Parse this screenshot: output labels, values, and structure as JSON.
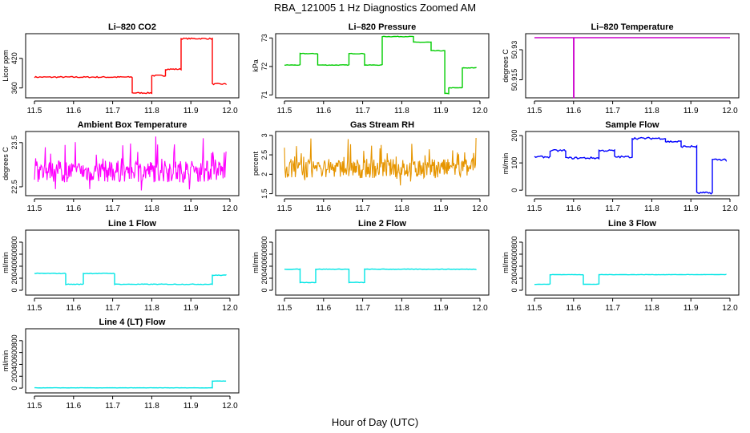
{
  "figure": {
    "title": "RBA_121005  1 Hz Diagnostics Zoomed AM",
    "xlabel": "Hour of Day (UTC)"
  },
  "chart_data": [
    {
      "type": "line",
      "title": "Li–820 CO2",
      "ylabel": "Licor ppm",
      "color": "#ff0000",
      "style": "step",
      "xlim": [
        11.5,
        12.0
      ],
      "ylim": [
        340,
        470
      ],
      "xticks": [
        "11.5",
        "11.6",
        "11.7",
        "11.8",
        "11.9",
        "12.0"
      ],
      "yticks": [
        360,
        420
      ],
      "x": [
        11.5,
        11.75,
        11.75,
        11.8,
        11.8,
        11.835,
        11.835,
        11.875,
        11.875,
        11.955,
        11.955,
        11.99
      ],
      "y": [
        382,
        382,
        350,
        350,
        385,
        385,
        398,
        398,
        460,
        460,
        368,
        368
      ],
      "noise": 2.5
    },
    {
      "type": "line",
      "title": "Li–820 Pressure",
      "ylabel": "kPa",
      "color": "#00cc00",
      "style": "step",
      "xlim": [
        11.5,
        12.0
      ],
      "ylim": [
        70.9,
        73.15
      ],
      "xticks": [
        "11.5",
        "11.6",
        "11.7",
        "11.8",
        "11.9",
        "12.0"
      ],
      "yticks": [
        71.0,
        72.0,
        73.0
      ],
      "x": [
        11.5,
        11.54,
        11.54,
        11.585,
        11.585,
        11.665,
        11.665,
        11.705,
        11.705,
        11.75,
        11.75,
        11.83,
        11.83,
        11.875,
        11.875,
        11.91,
        11.91,
        11.92,
        11.92,
        11.955,
        11.955,
        11.99
      ],
      "y": [
        72.05,
        72.05,
        72.45,
        72.45,
        72.05,
        72.05,
        72.45,
        72.45,
        72.05,
        72.05,
        73.05,
        73.05,
        72.85,
        72.85,
        72.55,
        72.55,
        71.05,
        71.05,
        71.25,
        71.25,
        71.95,
        71.95
      ],
      "noise": 0.02
    },
    {
      "type": "line",
      "title": "Li–820 Temperature",
      "ylabel": "degrees C",
      "color": "#cc00cc",
      "style": "step",
      "xlim": [
        11.5,
        12.0
      ],
      "ylim": [
        50.906,
        50.938
      ],
      "xticks": [
        "11.5",
        "11.6",
        "11.7",
        "11.8",
        "11.9",
        "12.0"
      ],
      "yticks": [
        50.915,
        50.93
      ],
      "x": [
        11.5,
        11.6,
        11.6,
        11.601,
        11.601,
        12.0
      ],
      "y": [
        50.936,
        50.936,
        50.906,
        50.906,
        50.936,
        50.936
      ],
      "noise": 0
    },
    {
      "type": "line",
      "title": "Ambient Box Temperature",
      "ylabel": "degrees C",
      "color": "#ff00ff",
      "style": "noise",
      "xlim": [
        11.5,
        12.0
      ],
      "ylim": [
        22.3,
        23.75
      ],
      "xticks": [
        "11.5",
        "11.6",
        "11.7",
        "11.8",
        "11.9",
        "12.0"
      ],
      "yticks": [
        22.5,
        23.5
      ],
      "x": [
        11.5,
        11.99
      ],
      "y": [
        22.85,
        22.85
      ],
      "noise": 0.55
    },
    {
      "type": "line",
      "title": "Gas Stream RH",
      "ylabel": "percent",
      "color": "#e69500",
      "style": "noise",
      "xlim": [
        11.5,
        12.0
      ],
      "ylim": [
        1.45,
        3.1
      ],
      "xticks": [
        "11.5",
        "11.6",
        "11.7",
        "11.8",
        "11.9",
        "12.0"
      ],
      "yticks": [
        1.5,
        2.0,
        2.5,
        3.0
      ],
      "x": [
        11.5,
        11.99
      ],
      "y": [
        2.15,
        2.15
      ],
      "noise": 0.55
    },
    {
      "type": "line",
      "title": "Sample Flow",
      "ylabel": "ml/min",
      "color": "#0000ff",
      "style": "step",
      "xlim": [
        11.5,
        12.0
      ],
      "ylim": [
        -20,
        215
      ],
      "xticks": [
        "11.5",
        "11.6",
        "11.7",
        "11.8",
        "11.9",
        "12.0"
      ],
      "yticks": [
        0,
        100,
        200
      ],
      "x": [
        11.5,
        11.54,
        11.54,
        11.58,
        11.58,
        11.665,
        11.665,
        11.705,
        11.705,
        11.75,
        11.75,
        11.835,
        11.835,
        11.875,
        11.875,
        11.915,
        11.915,
        11.955,
        11.955,
        11.99
      ],
      "y": [
        122,
        122,
        145,
        145,
        118,
        118,
        145,
        145,
        122,
        122,
        190,
        190,
        178,
        178,
        160,
        160,
        -10,
        -10,
        112,
        112
      ],
      "noise": 7
    },
    {
      "type": "line",
      "title": "Line 1 Flow",
      "ylabel": "ml/min",
      "color": "#00e5e5",
      "style": "step",
      "xlim": [
        11.5,
        12.0
      ],
      "ylim": [
        -80,
        1000
      ],
      "xticks": [
        "11.5",
        "11.6",
        "11.7",
        "11.8",
        "11.9",
        "12.0"
      ],
      "yticks": [
        0,
        200,
        400,
        600,
        800
      ],
      "x": [
        11.5,
        11.58,
        11.58,
        11.625,
        11.625,
        11.705,
        11.705,
        11.955,
        11.955,
        11.99
      ],
      "y": [
        280,
        280,
        100,
        100,
        280,
        280,
        100,
        100,
        250,
        250
      ],
      "noise": 10
    },
    {
      "type": "line",
      "title": "Line 2 Flow",
      "ylabel": "ml/min",
      "color": "#00e5e5",
      "style": "step",
      "xlim": [
        11.5,
        12.0
      ],
      "ylim": [
        -80,
        1000
      ],
      "xticks": [
        "11.5",
        "11.6",
        "11.7",
        "11.8",
        "11.9",
        "12.0"
      ],
      "yticks": [
        0,
        200,
        400,
        600,
        800
      ],
      "x": [
        11.5,
        11.54,
        11.54,
        11.58,
        11.58,
        11.665,
        11.665,
        11.705,
        11.705,
        11.99
      ],
      "y": [
        350,
        350,
        130,
        130,
        350,
        350,
        130,
        130,
        350,
        350
      ],
      "noise": 8
    },
    {
      "type": "line",
      "title": "Line 3 Flow",
      "ylabel": "ml/min",
      "color": "#00e5e5",
      "style": "step",
      "xlim": [
        11.5,
        12.0
      ],
      "ylim": [
        -80,
        1000
      ],
      "xticks": [
        "11.5",
        "11.6",
        "11.7",
        "11.8",
        "11.9",
        "12.0"
      ],
      "yticks": [
        0,
        200,
        400,
        600,
        800
      ],
      "x": [
        11.5,
        11.54,
        11.54,
        11.625,
        11.625,
        11.665,
        11.665,
        11.99
      ],
      "y": [
        100,
        100,
        260,
        260,
        100,
        100,
        260,
        260
      ],
      "noise": 6
    },
    {
      "type": "line",
      "title": "Line 4 (LT) Flow",
      "ylabel": "ml/min",
      "color": "#00e5e5",
      "style": "step",
      "xlim": [
        11.5,
        12.0
      ],
      "ylim": [
        -80,
        1000
      ],
      "xticks": [
        "11.5",
        "11.6",
        "11.7",
        "11.8",
        "11.9",
        "12.0"
      ],
      "yticks": [
        0,
        200,
        400,
        600,
        800
      ],
      "x": [
        11.5,
        11.955,
        11.955,
        11.99
      ],
      "y": [
        5,
        5,
        120,
        120
      ],
      "noise": 3
    }
  ]
}
